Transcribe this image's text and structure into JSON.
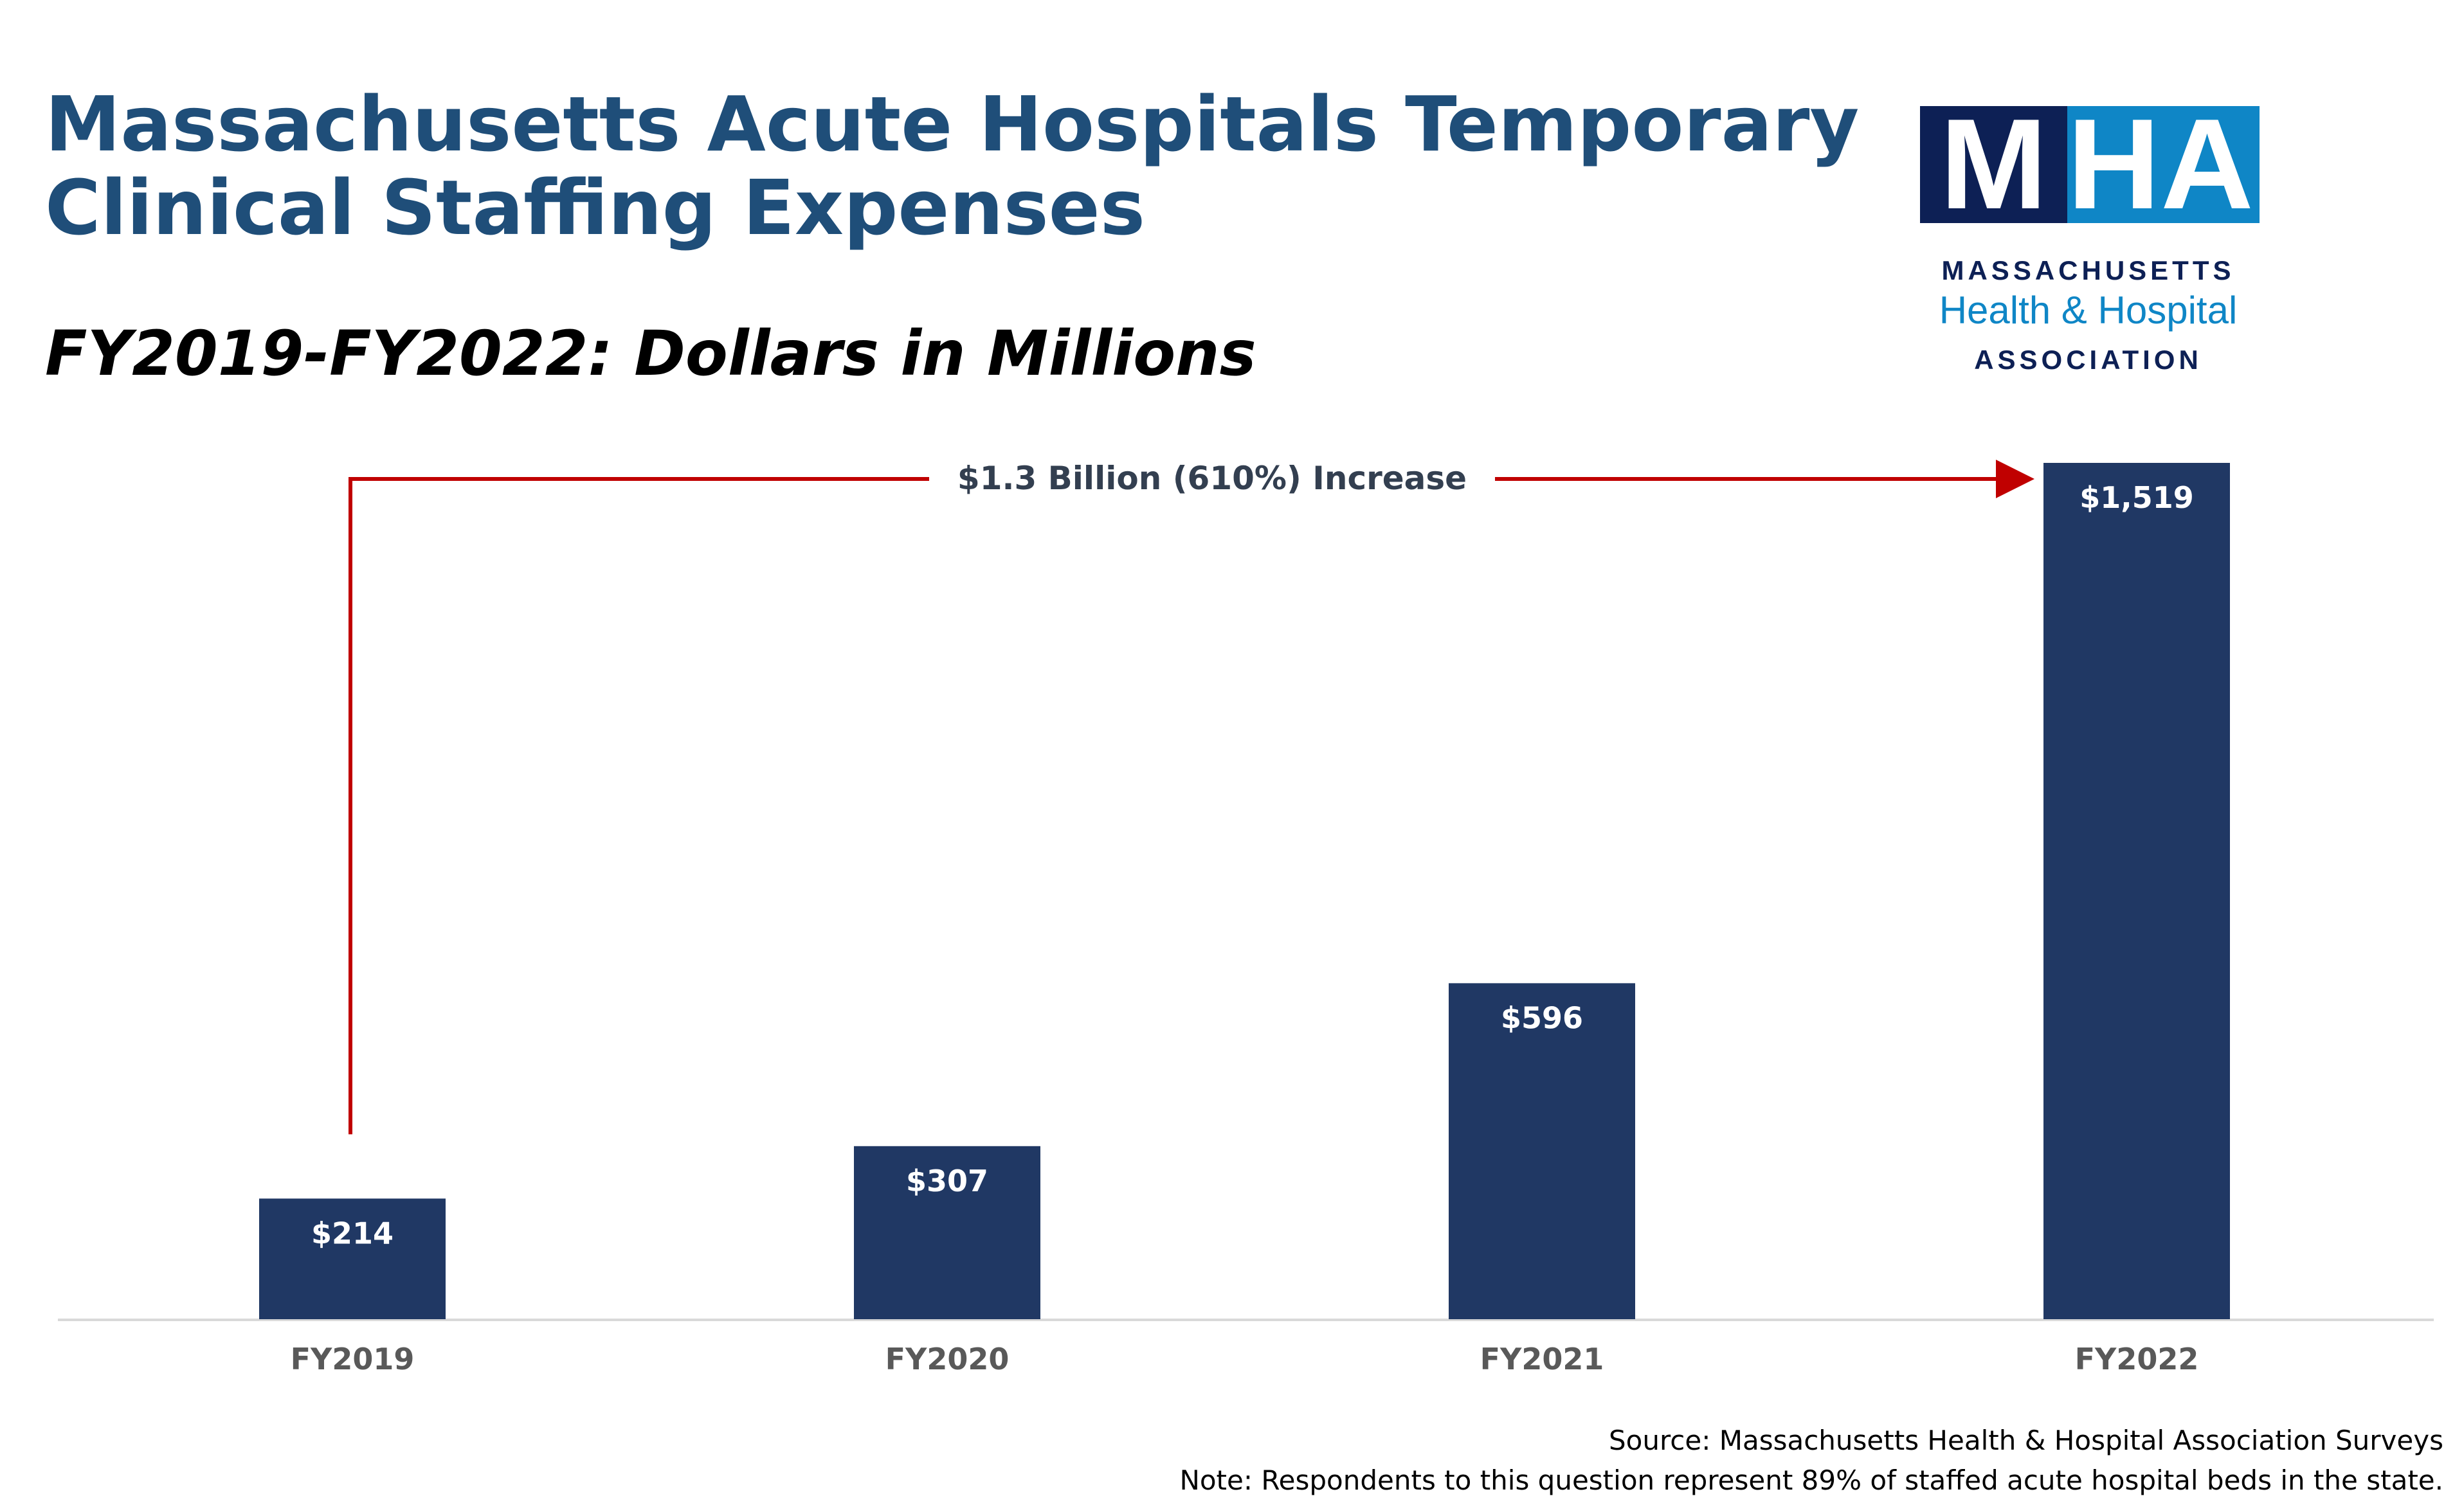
{
  "header": {
    "title_line1": "Massachusetts Acute Hospitals Temporary",
    "title_line2": "Clinical Staffing Expenses",
    "subtitle": "FY2019-FY2022: Dollars in Millions"
  },
  "logo": {
    "letters": [
      "M",
      "H",
      "A"
    ],
    "line1": "MASSACHUSETTS",
    "line2": "Health & Hospital",
    "line3": "ASSOCIATION",
    "colors": {
      "navy": "#0d2055",
      "blue": "#0f86c6"
    }
  },
  "chart_data": {
    "type": "bar",
    "categories": [
      "FY2019",
      "FY2020",
      "FY2021",
      "FY2022"
    ],
    "values": [
      214,
      307,
      596,
      1519
    ],
    "data_labels": [
      "$214",
      "$307",
      "$596",
      "$1,519"
    ],
    "ylim": [
      0,
      1519
    ],
    "y_axis_visible": false,
    "grid": false,
    "bar_color": "#203864",
    "annotation": {
      "text": "$1.3 Billion (610%) Increase",
      "from": "FY2019",
      "to": "FY2022",
      "arrow_color": "#c00000"
    }
  },
  "footer": {
    "source": "Source: Massachusetts Health & Hospital Association Surveys",
    "note": "Note: Respondents to this question represent 89% of staffed acute hospital beds in the state."
  }
}
